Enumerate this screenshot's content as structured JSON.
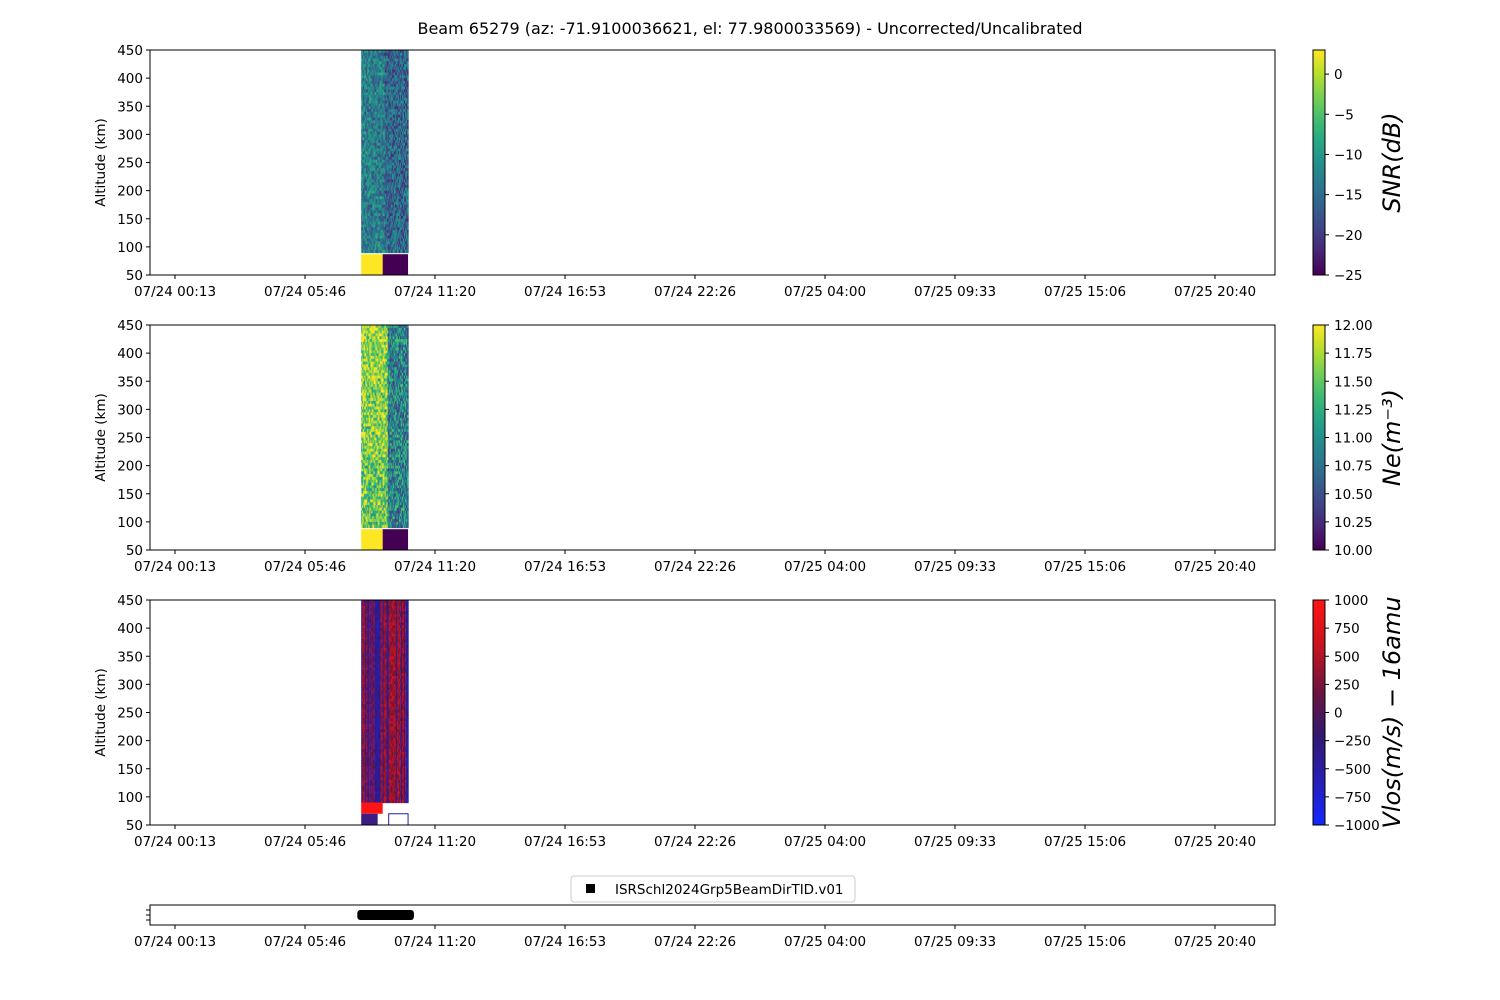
{
  "title": "Beam 65279 (az: -71.9100036621, el: 77.9800033569) - Uncorrected/Uncalibrated",
  "time_ticks": [
    "07/24 00:13",
    "07/24 05:46",
    "07/24 11:20",
    "07/24 16:53",
    "07/24 22:26",
    "07/25 04:00",
    "07/25 09:33",
    "07/25 15:06",
    "07/25 20:40"
  ],
  "chart_data": [
    {
      "type": "heatmap",
      "ylabel": "Altitude (km)",
      "ylim": [
        50,
        450
      ],
      "yticks": [
        50,
        100,
        150,
        200,
        250,
        300,
        350,
        400,
        450
      ],
      "data_time_range": [
        "07/24 ~08:10",
        "07/24 ~10:10"
      ],
      "colorbar": {
        "label": "SNR(dB)",
        "range": [
          -25,
          3
        ],
        "ticks": [
          0,
          -5,
          -10,
          -15,
          -20,
          -25
        ],
        "colormap": "viridis"
      }
    },
    {
      "type": "heatmap",
      "ylabel": "Altitude (km)",
      "ylim": [
        50,
        450
      ],
      "yticks": [
        50,
        100,
        150,
        200,
        250,
        300,
        350,
        400,
        450
      ],
      "data_time_range": [
        "07/24 ~08:10",
        "07/24 ~10:10"
      ],
      "colorbar": {
        "label": "Ne(m⁻³)",
        "range": [
          10,
          12
        ],
        "ticks": [
          "12.00",
          "11.75",
          "11.50",
          "11.25",
          "11.00",
          "10.75",
          "10.50",
          "10.25",
          "10.00"
        ],
        "colormap": "viridis"
      }
    },
    {
      "type": "heatmap",
      "ylabel": "Altitude (km)",
      "ylim": [
        50,
        450
      ],
      "yticks": [
        50,
        100,
        150,
        200,
        250,
        300,
        350,
        400,
        450
      ],
      "data_time_range": [
        "07/24 ~08:10",
        "07/24 ~10:10"
      ],
      "colorbar": {
        "label": "Vlos(m/s) − 16amu",
        "range": [
          -1000,
          1000
        ],
        "ticks": [
          1000,
          750,
          500,
          250,
          0,
          -250,
          -500,
          -750,
          -1000
        ],
        "colormap": "blue-red"
      }
    },
    {
      "type": "scatter",
      "legend": "ISRSchl2024Grp5BeamDirTID.v01",
      "legend_placement": "top-center",
      "data_time_range": [
        "07/24 ~08:00",
        "07/24 ~10:25"
      ]
    }
  ]
}
